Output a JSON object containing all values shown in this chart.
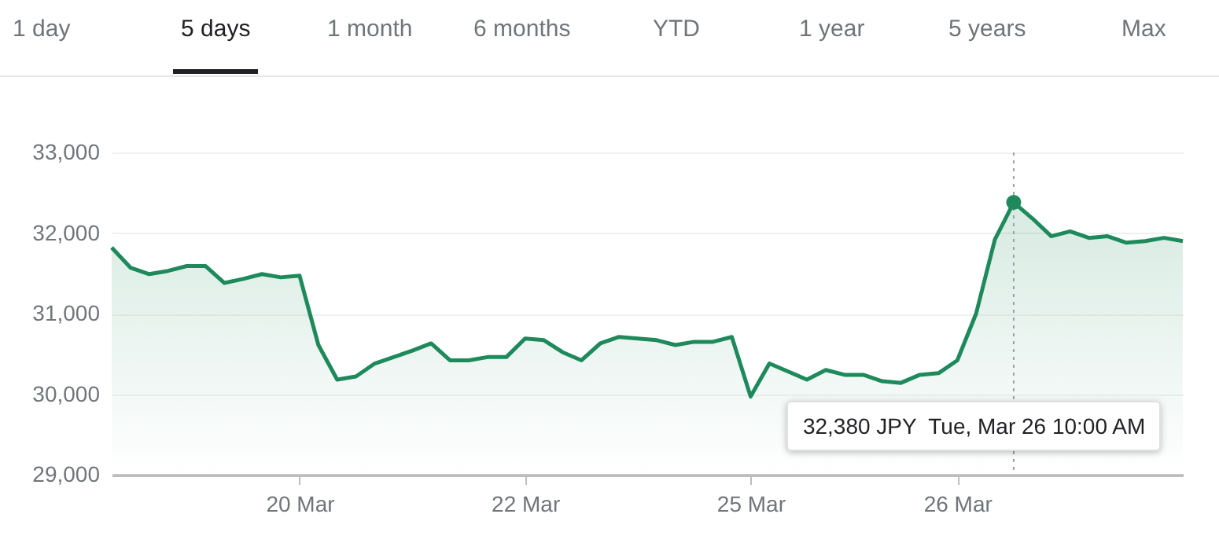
{
  "chart_data": {
    "type": "area",
    "color": "#1e8a5c",
    "categories": [
      null,
      null,
      null,
      null,
      null,
      null,
      null,
      null,
      null,
      null,
      "20 Mar",
      null,
      null,
      null,
      null,
      null,
      null,
      null,
      null,
      null,
      null,
      null,
      "22 Mar",
      null,
      null,
      null,
      null,
      null,
      null,
      null,
      null,
      null,
      null,
      null,
      "25 Mar",
      null,
      null,
      null,
      null,
      null,
      null,
      null,
      null,
      null,
      null,
      "26 Mar",
      null,
      null,
      null,
      null,
      null,
      null,
      null,
      null,
      null,
      null,
      null,
      null
    ],
    "values": [
      31820,
      31570,
      31490,
      31530,
      31590,
      31590,
      31380,
      31430,
      31490,
      31450,
      31470,
      30610,
      30180,
      30220,
      30380,
      30460,
      30540,
      30630,
      30420,
      30420,
      30460,
      30460,
      30690,
      30670,
      30520,
      30420,
      30630,
      30710,
      30690,
      30670,
      30610,
      30650,
      30650,
      30710,
      29970,
      30380,
      30280,
      30180,
      30300,
      30240,
      30240,
      30160,
      30140,
      30240,
      30260,
      30420,
      31000,
      31920,
      32380,
      32180,
      31960,
      32020,
      31940,
      31960,
      31880,
      31900,
      31940,
      31900
    ],
    "ylim": [
      29000,
      33000
    ],
    "yticks": [
      {
        "value": 29000,
        "label": "29,000"
      },
      {
        "value": 30000,
        "label": "30,000"
      },
      {
        "value": 31000,
        "label": "31,000"
      },
      {
        "value": 32000,
        "label": "32,000"
      },
      {
        "value": 33000,
        "label": "33,000"
      }
    ],
    "grid": "y",
    "annotations": [
      "1 day",
      "5 days",
      "1 month",
      "6 months",
      "YTD",
      "1 year",
      "5 years",
      "Max",
      "32,380 JPY  Tue, Mar 26 10:00 AM"
    ]
  }
}
